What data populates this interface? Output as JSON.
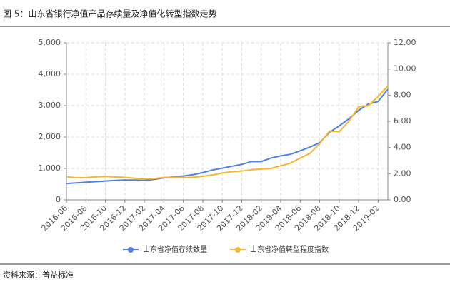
{
  "chart_data": {
    "type": "line",
    "title": "图 5：山东省银行净值产品存续量及净值化转型指数走势",
    "source": "资料来源：普益标准",
    "categories": [
      "2016-06",
      null,
      "2016-08",
      null,
      "2016-10",
      null,
      "2016-12",
      null,
      "2017-02",
      null,
      "2017-04",
      null,
      "2017-06",
      null,
      "2017-08",
      null,
      "2017-10",
      null,
      "2017-12",
      null,
      "2018-02",
      null,
      "2018-04",
      null,
      "2018-06",
      null,
      "2018-08",
      null,
      "2018-10",
      null,
      "2018-12",
      null,
      "2019-02",
      null
    ],
    "series": [
      {
        "name": "山东省净值存续数量",
        "color": "#4f81e0",
        "axis": "y",
        "values": [
          520,
          540,
          560,
          580,
          600,
          620,
          630,
          630,
          620,
          650,
          700,
          730,
          760,
          800,
          870,
          950,
          1010,
          1070,
          1130,
          1220,
          1220,
          1330,
          1400,
          1450,
          1560,
          1680,
          1820,
          2150,
          2350,
          2580,
          2850,
          3050,
          3130,
          3520
        ]
      },
      {
        "name": "山东省净值转型程度指数",
        "color": "#f5b82e",
        "axis": "y2",
        "values": [
          1.75,
          1.7,
          1.7,
          1.75,
          1.78,
          1.75,
          1.72,
          1.65,
          1.6,
          1.62,
          1.72,
          1.72,
          1.72,
          1.72,
          1.8,
          1.9,
          2.05,
          2.15,
          2.2,
          2.3,
          2.35,
          2.4,
          2.6,
          2.8,
          3.2,
          3.55,
          4.3,
          5.25,
          5.2,
          6.0,
          7.1,
          7.2,
          7.9,
          8.7
        ]
      }
    ],
    "ylim": [
      0,
      5000
    ],
    "yticks": [
      0,
      {
        "value": 1000,
        "label": "1,000"
      },
      {
        "value": 2000,
        "label": "2,000"
      },
      {
        "value": 3000,
        "label": "3,000"
      },
      {
        "value": 4000,
        "label": "4,000"
      },
      {
        "value": 5000,
        "label": "5,000"
      }
    ],
    "y2lim": [
      0,
      12
    ],
    "y2ticks": [
      {
        "value": 0,
        "label": "0.00"
      },
      {
        "value": 2,
        "label": "2.00"
      },
      {
        "value": 4,
        "label": "4.00"
      },
      {
        "value": 6,
        "label": "6.00"
      },
      {
        "value": 8,
        "label": "8.00"
      },
      {
        "value": 10,
        "label": "10.00"
      },
      {
        "value": 12,
        "label": "12.00"
      }
    ],
    "grid": true,
    "legend": "bottom"
  }
}
